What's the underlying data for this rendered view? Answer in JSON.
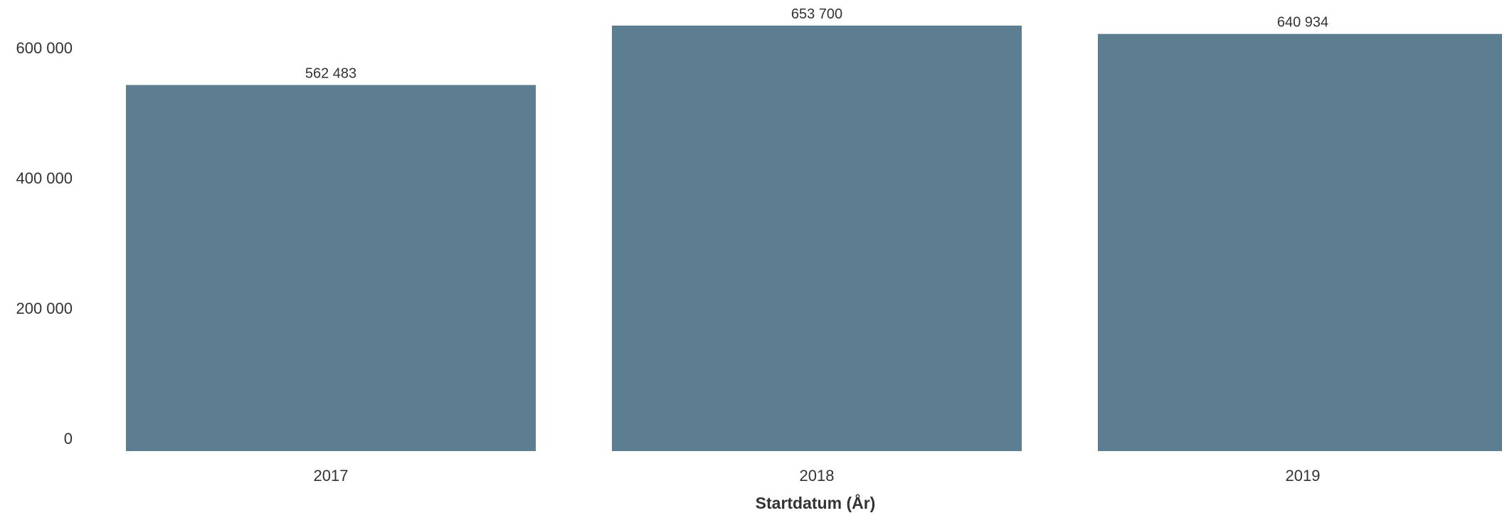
{
  "chart_data": {
    "type": "bar",
    "title": "",
    "xlabel": "Startdatum (År)",
    "ylabel": "",
    "categories": [
      "2017",
      "2018",
      "2019"
    ],
    "values": [
      562483,
      653700,
      640934
    ],
    "value_labels": [
      "562 483",
      "653 700",
      "640 934"
    ],
    "yticks": [
      0,
      200000,
      400000,
      600000
    ],
    "ytick_labels": [
      "0",
      "200 000",
      "400 000",
      "600 000"
    ],
    "ylim": [
      0,
      653700
    ],
    "grid": false,
    "legend": "none",
    "bar_color": "#5d7e91"
  }
}
